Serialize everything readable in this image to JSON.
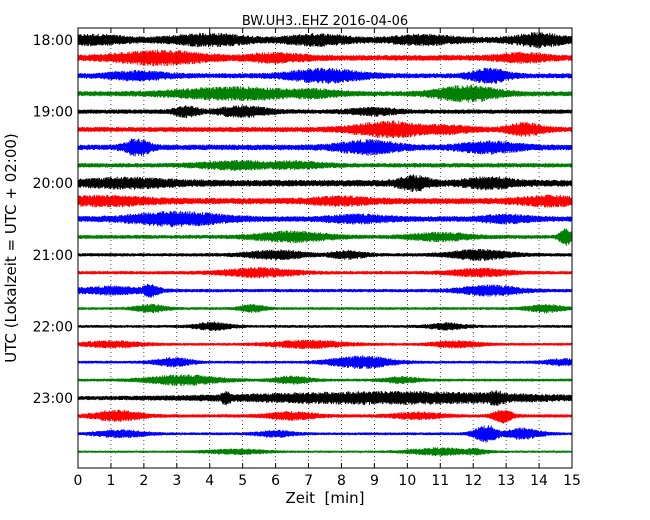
{
  "chart_data": {
    "type": "line",
    "title": "BW.UH3..EHZ 2016-04-06",
    "xlabel": "Zeit  [min]",
    "ylabel": "UTC (Lokalzeit = UTC + 02:00)",
    "xlim": [
      0,
      15
    ],
    "xticks": [
      "0",
      "1",
      "2",
      "3",
      "4",
      "5",
      "6",
      "7",
      "8",
      "9",
      "10",
      "11",
      "12",
      "13",
      "14",
      "15"
    ],
    "yticks": [
      "18:00",
      "19:00",
      "20:00",
      "21:00",
      "22:00",
      "23:00"
    ],
    "grid": "vertical dotted at each minute",
    "trace_interval_minutes": 15,
    "trace_colors": [
      "#000000",
      "#ff0000",
      "#0000ff",
      "#008000"
    ],
    "traces": [
      {
        "start": "18:00",
        "color": "#000000",
        "base_amp": 0.55,
        "events": [
          [
            0.5,
            1.0,
            0.6
          ],
          [
            4.0,
            1.2,
            0.8
          ],
          [
            7.3,
            1.0,
            0.7
          ],
          [
            10.5,
            1.0,
            0.6
          ],
          [
            14.0,
            0.8,
            0.9
          ]
        ]
      },
      {
        "start": "18:15",
        "color": "#ff0000",
        "base_amp": 0.5,
        "events": [
          [
            2.5,
            1.5,
            1.0
          ],
          [
            6.0,
            1.0,
            0.6
          ],
          [
            13.5,
            0.8,
            0.6
          ]
        ]
      },
      {
        "start": "18:30",
        "color": "#0000ff",
        "base_amp": 0.45,
        "events": [
          [
            1.8,
            1.0,
            0.6
          ],
          [
            7.5,
            1.2,
            1.0
          ],
          [
            12.5,
            0.6,
            1.1
          ]
        ]
      },
      {
        "start": "18:45",
        "color": "#008000",
        "base_amp": 0.45,
        "events": [
          [
            4.8,
            2.0,
            0.9
          ],
          [
            7.0,
            1.0,
            0.6
          ],
          [
            11.8,
            1.0,
            1.2
          ]
        ]
      },
      {
        "start": "19:00",
        "color": "#000000",
        "base_amp": 0.4,
        "events": [
          [
            3.3,
            0.4,
            0.8
          ],
          [
            5.0,
            0.8,
            0.8
          ],
          [
            9.0,
            0.8,
            0.5
          ]
        ]
      },
      {
        "start": "19:15",
        "color": "#ff0000",
        "base_amp": 0.45,
        "events": [
          [
            9.5,
            1.2,
            1.2
          ],
          [
            11.0,
            1.0,
            0.6
          ],
          [
            13.6,
            0.6,
            0.9
          ]
        ]
      },
      {
        "start": "19:30",
        "color": "#0000ff",
        "base_amp": 0.5,
        "events": [
          [
            1.8,
            0.4,
            1.3
          ],
          [
            8.8,
            1.0,
            1.0
          ],
          [
            12.5,
            1.0,
            0.8
          ]
        ]
      },
      {
        "start": "19:45",
        "color": "#008000",
        "base_amp": 0.4,
        "events": [
          [
            4.8,
            1.2,
            0.6
          ],
          [
            6.5,
            1.0,
            0.5
          ]
        ]
      },
      {
        "start": "20:00",
        "color": "#000000",
        "base_amp": 0.6,
        "events": [
          [
            1.5,
            1.5,
            0.6
          ],
          [
            10.2,
            0.5,
            1.0
          ],
          [
            12.5,
            0.8,
            0.7
          ]
        ]
      },
      {
        "start": "20:15",
        "color": "#ff0000",
        "base_amp": 0.55,
        "events": [
          [
            0.8,
            1.5,
            0.6
          ],
          [
            8.0,
            1.0,
            0.5
          ],
          [
            14.3,
            1.0,
            0.6
          ]
        ]
      },
      {
        "start": "20:30",
        "color": "#0000ff",
        "base_amp": 0.5,
        "events": [
          [
            3.0,
            1.5,
            1.0
          ],
          [
            8.5,
            1.0,
            0.5
          ],
          [
            13.0,
            0.8,
            0.5
          ]
        ]
      },
      {
        "start": "20:45",
        "color": "#008000",
        "base_amp": 0.35,
        "events": [
          [
            6.5,
            1.2,
            0.8
          ],
          [
            11.0,
            1.0,
            0.6
          ],
          [
            14.8,
            0.2,
            1.3
          ]
        ]
      },
      {
        "start": "21:00",
        "color": "#000000",
        "base_amp": 0.3,
        "events": [
          [
            6.0,
            1.0,
            0.7
          ],
          [
            8.2,
            0.6,
            0.6
          ],
          [
            12.2,
            1.0,
            0.8
          ]
        ]
      },
      {
        "start": "21:15",
        "color": "#ff0000",
        "base_amp": 0.3,
        "events": [
          [
            5.5,
            1.2,
            0.7
          ],
          [
            12.2,
            1.0,
            0.6
          ]
        ]
      },
      {
        "start": "21:30",
        "color": "#0000ff",
        "base_amp": 0.3,
        "events": [
          [
            1.0,
            1.2,
            0.6
          ],
          [
            2.2,
            0.3,
            1.0
          ],
          [
            12.5,
            1.0,
            0.8
          ]
        ]
      },
      {
        "start": "21:45",
        "color": "#008000",
        "base_amp": 0.25,
        "events": [
          [
            2.2,
            0.5,
            0.6
          ],
          [
            5.3,
            0.4,
            0.6
          ],
          [
            14.2,
            0.6,
            0.6
          ]
        ]
      },
      {
        "start": "22:00",
        "color": "#000000",
        "base_amp": 0.25,
        "events": [
          [
            4.1,
            0.6,
            0.6
          ],
          [
            11.2,
            0.6,
            0.5
          ]
        ]
      },
      {
        "start": "22:15",
        "color": "#ff0000",
        "base_amp": 0.25,
        "events": [
          [
            1.0,
            1.0,
            0.5
          ],
          [
            7.0,
            1.2,
            0.6
          ],
          [
            11.5,
            0.8,
            0.5
          ]
        ]
      },
      {
        "start": "22:30",
        "color": "#0000ff",
        "base_amp": 0.25,
        "events": [
          [
            2.9,
            0.6,
            0.7
          ],
          [
            8.6,
            1.0,
            1.0
          ],
          [
            14.7,
            0.6,
            0.5
          ]
        ]
      },
      {
        "start": "22:45",
        "color": "#008000",
        "base_amp": 0.25,
        "events": [
          [
            3.2,
            1.2,
            0.8
          ],
          [
            6.5,
            0.6,
            0.6
          ],
          [
            9.8,
            0.6,
            0.5
          ]
        ]
      },
      {
        "start": "23:00",
        "color": "#000000",
        "base_amp": 0.35,
        "events": [
          [
            4.5,
            0.2,
            1.0
          ],
          [
            9.5,
            5.0,
            0.9
          ],
          [
            12.7,
            0.4,
            1.1
          ]
        ]
      },
      {
        "start": "23:15",
        "color": "#ff0000",
        "base_amp": 0.3,
        "events": [
          [
            1.2,
            0.8,
            0.8
          ],
          [
            6.5,
            0.8,
            0.6
          ],
          [
            10.3,
            0.8,
            0.5
          ],
          [
            12.9,
            0.3,
            1.1
          ]
        ]
      },
      {
        "start": "23:30",
        "color": "#0000ff",
        "base_amp": 0.25,
        "events": [
          [
            1.3,
            0.8,
            0.6
          ],
          [
            6.0,
            0.6,
            0.5
          ],
          [
            12.4,
            0.4,
            1.4
          ],
          [
            13.5,
            0.6,
            0.9
          ]
        ]
      },
      {
        "start": "23:45",
        "color": "#008000",
        "base_amp": 0.2,
        "events": [
          [
            4.8,
            1.0,
            0.4
          ],
          [
            11.0,
            1.0,
            0.6
          ],
          [
            12.0,
            0.5,
            0.5
          ]
        ]
      }
    ]
  }
}
